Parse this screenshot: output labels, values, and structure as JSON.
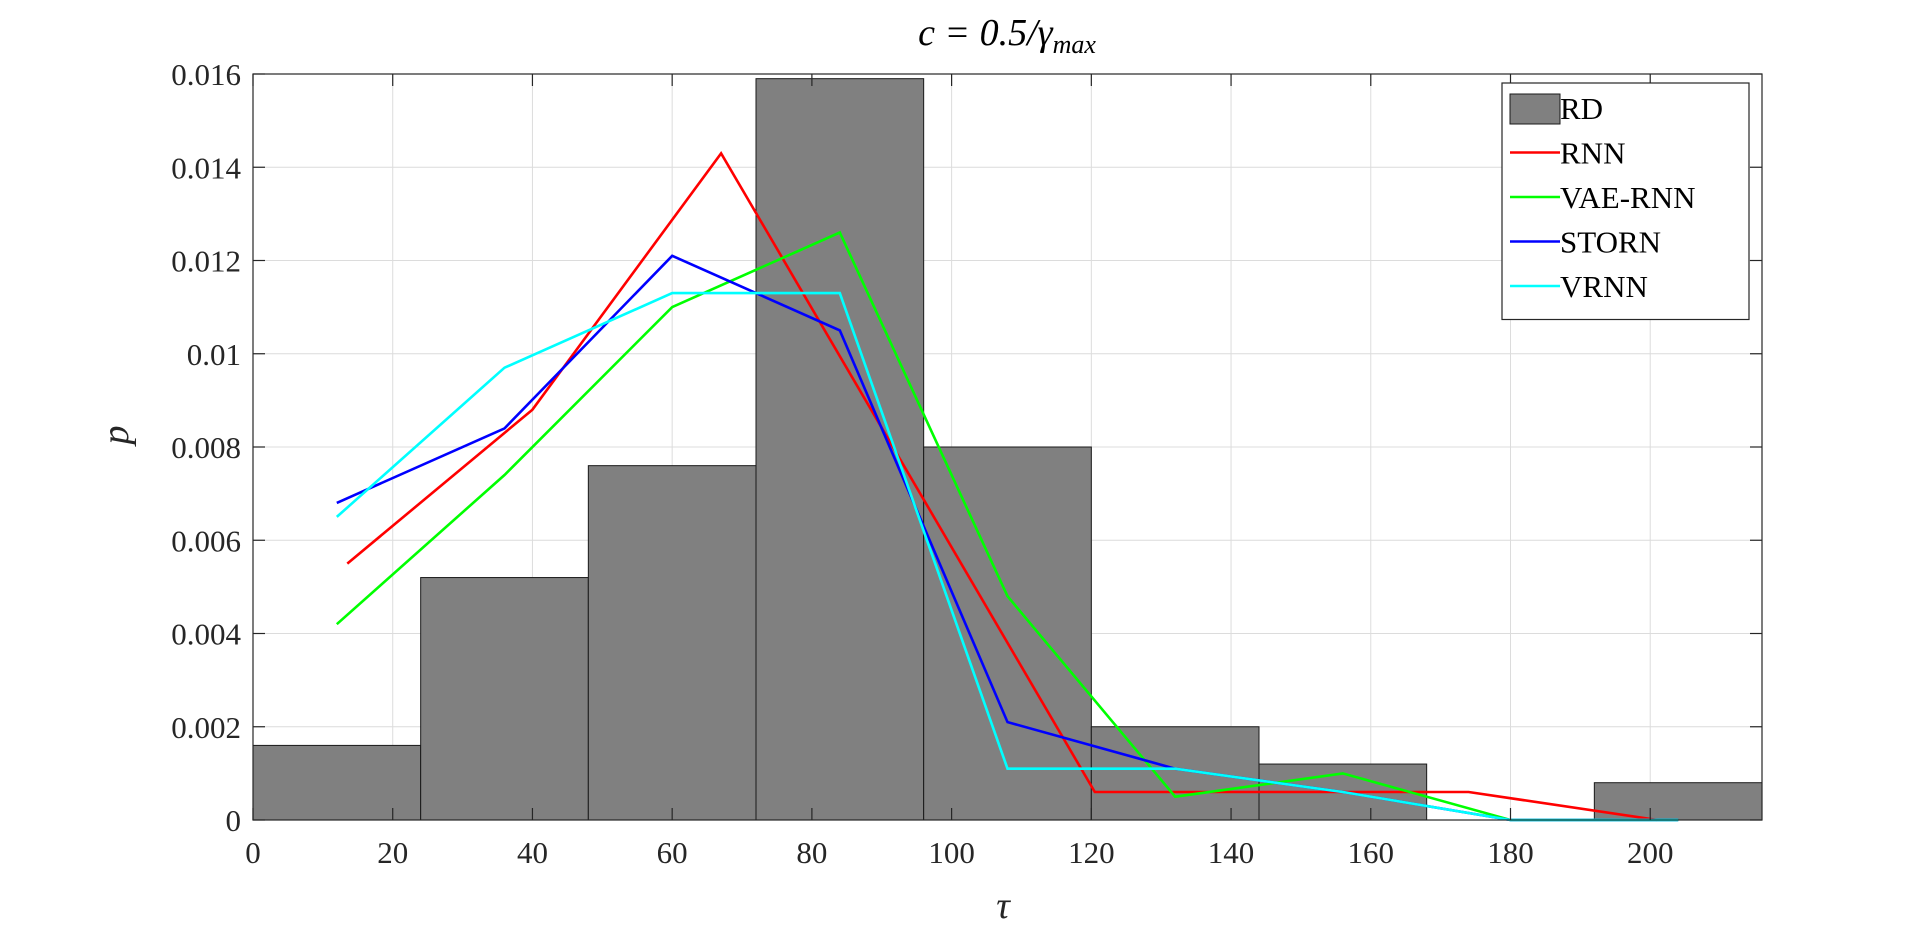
{
  "chart_data": {
    "type": "histogram",
    "title": "c = 0.5/γ",
    "title_sub": "max",
    "xlabel": "τ",
    "ylabel": "p",
    "xlim": [
      0,
      216
    ],
    "ylim": [
      0,
      0.016
    ],
    "x_ticks": [
      0,
      20,
      40,
      60,
      80,
      100,
      120,
      140,
      160,
      180,
      200
    ],
    "y_ticks": [
      0,
      0.002,
      0.004,
      0.006,
      0.008,
      0.01,
      0.012,
      0.014,
      0.016
    ],
    "y_tick_labels": [
      "0",
      "0.002",
      "0.004",
      "0.006",
      "0.008",
      "0.01",
      "0.012",
      "0.014",
      "0.016"
    ],
    "grid": true,
    "legend_position": "top-right",
    "histogram": {
      "name": "RD",
      "color": "#808080",
      "bin_edges": [
        0,
        24,
        48,
        72,
        96,
        120,
        144,
        168,
        192,
        216
      ],
      "values": [
        0.0016,
        0.0052,
        0.0076,
        0.0159,
        0.008,
        0.002,
        0.0012,
        0.0,
        0.0008
      ]
    },
    "series": [
      {
        "name": "RNN",
        "color": "#ff0000",
        "points": [
          [
            13.5,
            0.0055
          ],
          [
            40,
            0.0088
          ],
          [
            67,
            0.0143
          ],
          [
            120.5,
            0.0006
          ],
          [
            174,
            0.0006
          ],
          [
            201,
            0.0
          ]
        ]
      },
      {
        "name": "VAE-RNN",
        "color": "#00ff00",
        "points": [
          [
            12,
            0.0042
          ],
          [
            36,
            0.0074
          ],
          [
            60,
            0.011
          ],
          [
            84,
            0.0126
          ],
          [
            108,
            0.0048
          ],
          [
            132,
            0.0005
          ],
          [
            156,
            0.001
          ],
          [
            180,
            0.0
          ],
          [
            204,
            0.0
          ]
        ]
      },
      {
        "name": "STORN",
        "color": "#0000ff",
        "points": [
          [
            12,
            0.0068
          ],
          [
            36,
            0.0084
          ],
          [
            60,
            0.0121
          ],
          [
            84,
            0.0105
          ],
          [
            108,
            0.0021
          ],
          [
            132,
            0.0011
          ],
          [
            156,
            0.0006
          ],
          [
            180,
            0.0
          ],
          [
            204,
            0.0
          ]
        ]
      },
      {
        "name": "VRNN",
        "color": "#00ffff",
        "points": [
          [
            12,
            0.0065
          ],
          [
            36,
            0.0097
          ],
          [
            60,
            0.0113
          ],
          [
            84,
            0.0113
          ],
          [
            108,
            0.0011
          ],
          [
            132,
            0.0011
          ],
          [
            156,
            0.0006
          ],
          [
            180,
            0.0
          ],
          [
            204,
            0.0
          ]
        ]
      }
    ]
  }
}
